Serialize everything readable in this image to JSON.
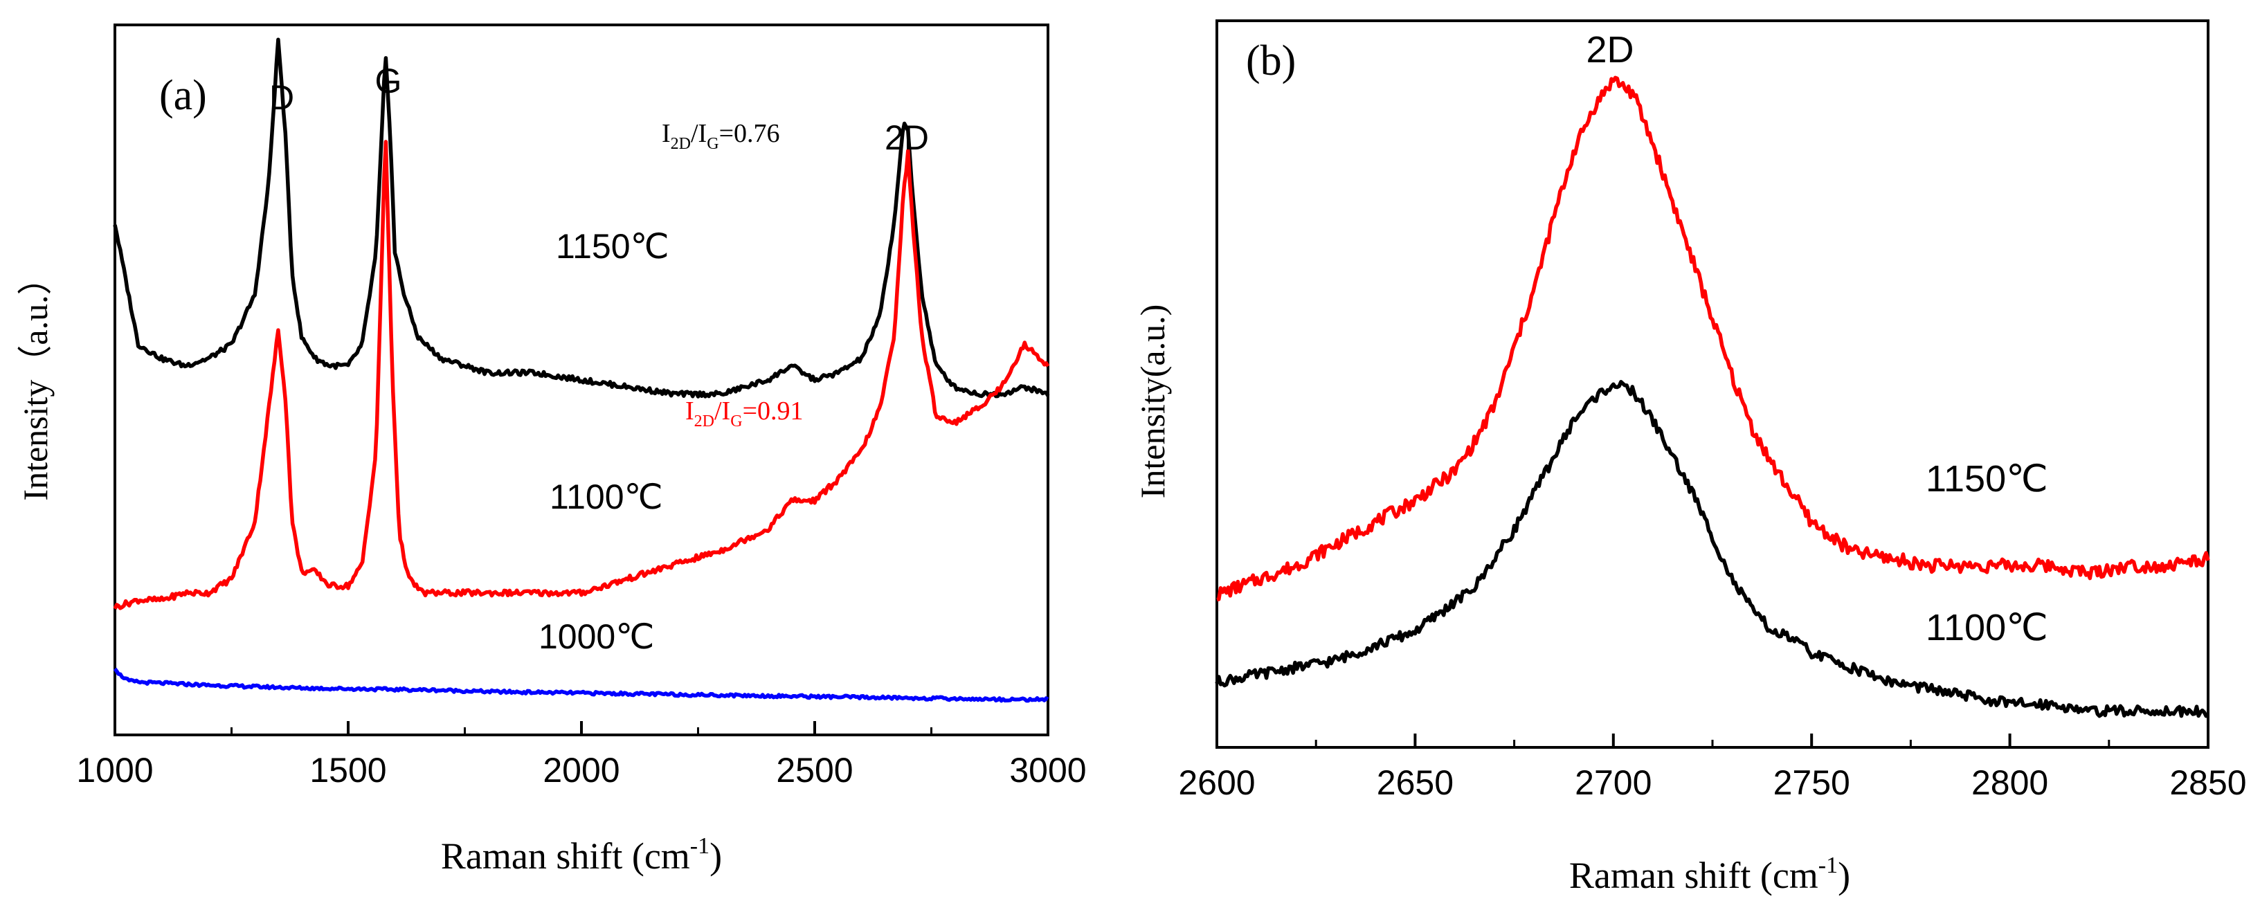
{
  "chart_data": [
    {
      "type": "line",
      "panel_label": "(a)",
      "xlabel": "Raman shift (cm",
      "xlabel_sup": "-1",
      "xlabel_end": ")",
      "ylabel": "Intensity（a.u.）",
      "xlim": [
        1000,
        3000
      ],
      "x_ticks": [
        "1000",
        "1500",
        "2000",
        "2500",
        "3000"
      ],
      "peak_labels": [
        "D",
        "G",
        "2D"
      ],
      "annotations": [
        {
          "I": "I",
          "sub1": "2D",
          "mid": "/I",
          "sub2": "G",
          "val": "=0.76",
          "color": "#000000"
        },
        {
          "I": "I",
          "sub1": "2D",
          "mid": "/I",
          "sub2": "G",
          "val": "=0.91",
          "color": "#ff0000"
        }
      ],
      "series": [
        {
          "name": "1150℃",
          "color": "#000000",
          "x": [
            1000,
            1050,
            1100,
            1150,
            1200,
            1250,
            1300,
            1330,
            1350,
            1365,
            1380,
            1400,
            1430,
            1460,
            1500,
            1530,
            1560,
            1580,
            1590,
            1600,
            1620,
            1650,
            1700,
            1800,
            1900,
            2000,
            2100,
            2200,
            2300,
            2400,
            2450,
            2500,
            2550,
            2600,
            2640,
            2670,
            2690,
            2700,
            2710,
            2730,
            2760,
            2800,
            2850,
            2900,
            2950,
            3000
          ],
          "y": [
            0.72,
            0.55,
            0.53,
            0.52,
            0.53,
            0.55,
            0.62,
            0.78,
            0.98,
            0.85,
            0.65,
            0.56,
            0.53,
            0.52,
            0.52,
            0.55,
            0.68,
            0.96,
            0.85,
            0.68,
            0.62,
            0.56,
            0.53,
            0.51,
            0.51,
            0.5,
            0.49,
            0.48,
            0.48,
            0.5,
            0.52,
            0.5,
            0.51,
            0.53,
            0.59,
            0.72,
            0.86,
            0.85,
            0.76,
            0.62,
            0.52,
            0.49,
            0.48,
            0.48,
            0.49,
            0.48
          ]
        },
        {
          "name": "1100℃",
          "color": "#ff0000",
          "x": [
            1000,
            1050,
            1100,
            1150,
            1200,
            1250,
            1300,
            1330,
            1350,
            1365,
            1380,
            1400,
            1430,
            1460,
            1500,
            1530,
            1560,
            1580,
            1595,
            1610,
            1630,
            1660,
            1700,
            1800,
            1900,
            2000,
            2100,
            2200,
            2300,
            2400,
            2450,
            2500,
            2550,
            2600,
            2640,
            2670,
            2690,
            2700,
            2710,
            2730,
            2760,
            2800,
            2850,
            2900,
            2950,
            3000
          ],
          "y": [
            0.18,
            0.19,
            0.19,
            0.2,
            0.2,
            0.22,
            0.3,
            0.46,
            0.57,
            0.48,
            0.3,
            0.23,
            0.23,
            0.21,
            0.21,
            0.24,
            0.4,
            0.85,
            0.5,
            0.28,
            0.22,
            0.2,
            0.2,
            0.2,
            0.2,
            0.2,
            0.22,
            0.24,
            0.26,
            0.29,
            0.33,
            0.33,
            0.36,
            0.4,
            0.46,
            0.56,
            0.76,
            0.82,
            0.72,
            0.56,
            0.45,
            0.44,
            0.46,
            0.49,
            0.55,
            0.52
          ]
        },
        {
          "name": "1000℃",
          "color": "#0000ff",
          "x": [
            1000,
            1010,
            1030,
            1060,
            1100,
            1200,
            1300,
            1400,
            1500,
            1600,
            1700,
            1800,
            1900,
            2000,
            2100,
            2200,
            2300,
            2400,
            2500,
            2600,
            2700,
            2800,
            2900,
            3000
          ],
          "y": [
            0.095,
            0.085,
            0.076,
            0.074,
            0.073,
            0.07,
            0.068,
            0.066,
            0.065,
            0.064,
            0.063,
            0.061,
            0.06,
            0.059,
            0.058,
            0.057,
            0.056,
            0.055,
            0.054,
            0.053,
            0.052,
            0.051,
            0.05,
            0.05
          ]
        }
      ]
    },
    {
      "type": "line",
      "panel_label": "(b)",
      "xlabel": "Raman shift (cm",
      "xlabel_sup": "-1",
      "xlabel_end": ")",
      "ylabel": "Intensity(a.u.)",
      "xlim": [
        2600,
        2850
      ],
      "x_ticks": [
        "2600",
        "2650",
        "2700",
        "2750",
        "2800",
        "2850"
      ],
      "peak_label": "2D",
      "series": [
        {
          "name": "1150℃",
          "color": "#ff0000",
          "x": [
            2600,
            2610,
            2620,
            2630,
            2640,
            2650,
            2660,
            2665,
            2670,
            2675,
            2680,
            2685,
            2690,
            2695,
            2700,
            2705,
            2710,
            2715,
            2720,
            2725,
            2730,
            2735,
            2740,
            2745,
            2750,
            2755,
            2760,
            2770,
            2780,
            2790,
            2800,
            2810,
            2820,
            2830,
            2840,
            2850
          ],
          "y": [
            0.21,
            0.23,
            0.25,
            0.28,
            0.31,
            0.34,
            0.38,
            0.42,
            0.47,
            0.55,
            0.63,
            0.73,
            0.82,
            0.88,
            0.92,
            0.9,
            0.83,
            0.75,
            0.67,
            0.59,
            0.51,
            0.44,
            0.39,
            0.35,
            0.31,
            0.29,
            0.27,
            0.26,
            0.25,
            0.25,
            0.25,
            0.25,
            0.24,
            0.25,
            0.25,
            0.26
          ]
        },
        {
          "name": "1100℃",
          "color": "#000000",
          "x": [
            2600,
            2610,
            2620,
            2630,
            2640,
            2650,
            2660,
            2665,
            2670,
            2675,
            2680,
            2685,
            2690,
            2695,
            2700,
            2705,
            2710,
            2715,
            2720,
            2725,
            2730,
            2735,
            2740,
            2745,
            2750,
            2755,
            2760,
            2770,
            2780,
            2790,
            2800,
            2810,
            2820,
            2830,
            2840,
            2850
          ],
          "y": [
            0.09,
            0.1,
            0.11,
            0.12,
            0.14,
            0.16,
            0.2,
            0.22,
            0.26,
            0.3,
            0.35,
            0.4,
            0.45,
            0.48,
            0.5,
            0.49,
            0.45,
            0.4,
            0.35,
            0.29,
            0.23,
            0.19,
            0.16,
            0.15,
            0.13,
            0.12,
            0.11,
            0.09,
            0.08,
            0.07,
            0.06,
            0.06,
            0.05,
            0.05,
            0.05,
            0.05
          ]
        }
      ]
    }
  ]
}
